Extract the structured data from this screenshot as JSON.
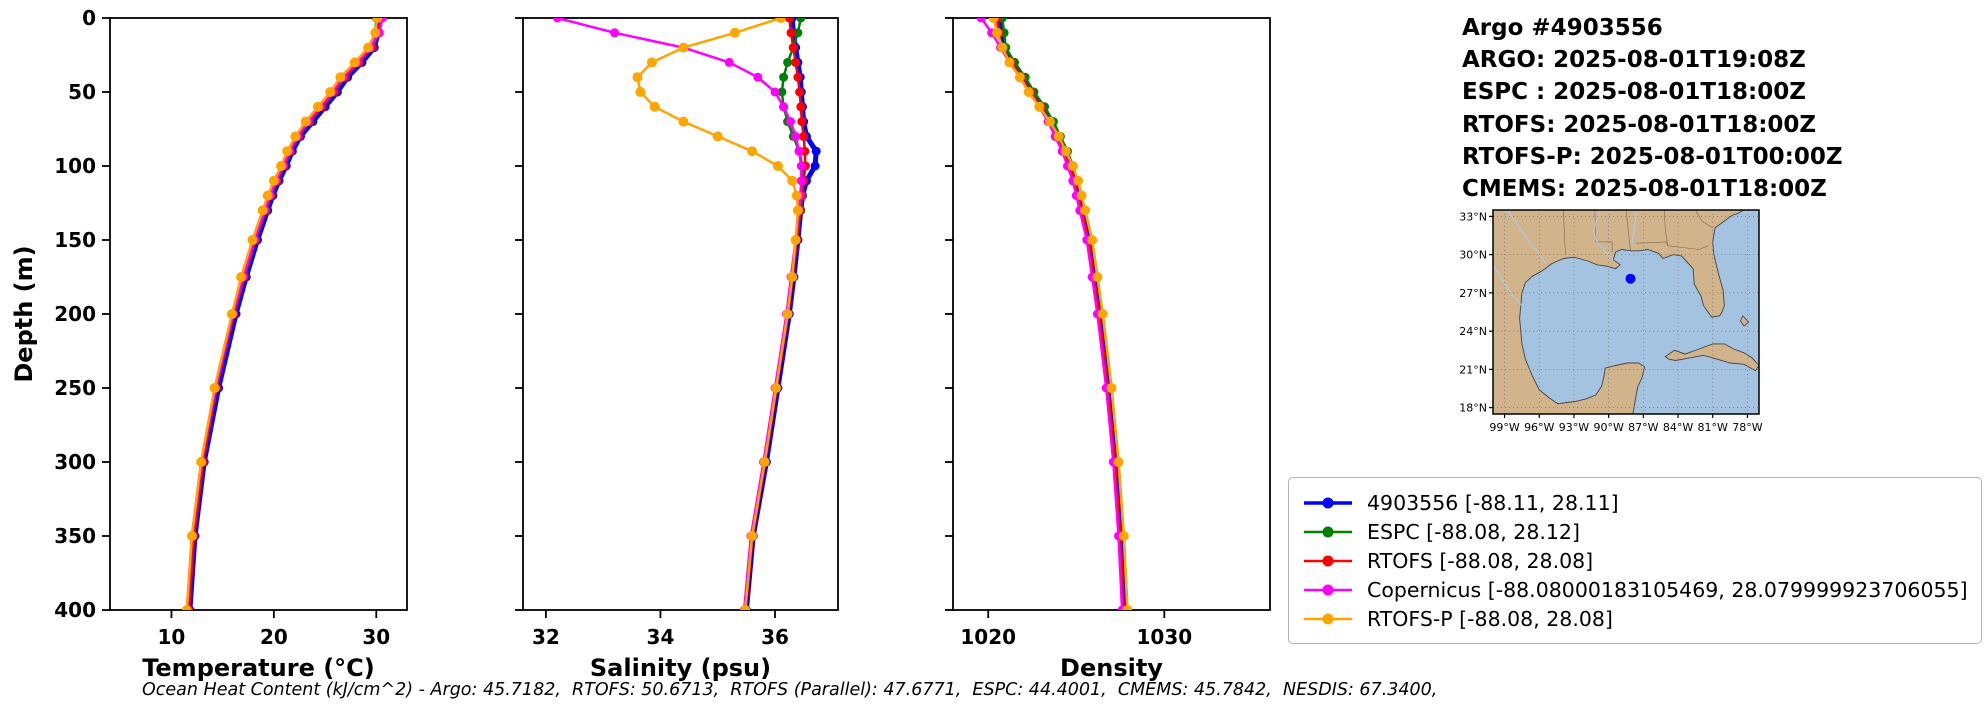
{
  "info_panel": {
    "title": "Argo #4903556",
    "lines": [
      "ARGO: 2025-08-01T19:08Z",
      "ESPC : 2025-08-01T18:00Z",
      "RTOFS: 2025-08-01T18:00Z",
      "RTOFS-P: 2025-08-01T00:00Z",
      "CMEMS: 2025-08-01T18:00Z"
    ]
  },
  "map": {
    "lat_ticks": [
      {
        "label": "33°N",
        "value": 33
      },
      {
        "label": "30°N",
        "value": 30
      },
      {
        "label": "27°N",
        "value": 27
      },
      {
        "label": "24°N",
        "value": 24
      },
      {
        "label": "21°N",
        "value": 21
      },
      {
        "label": "18°N",
        "value": 18
      }
    ],
    "lon_ticks": [
      {
        "label": "99°W",
        "value": -99
      },
      {
        "label": "96°W",
        "value": -96
      },
      {
        "label": "93°W",
        "value": -93
      },
      {
        "label": "90°W",
        "value": -90
      },
      {
        "label": "87°W",
        "value": -87
      },
      {
        "label": "84°W",
        "value": -84
      },
      {
        "label": "81°W",
        "value": -81
      },
      {
        "label": "78°W",
        "value": -78
      }
    ],
    "marker": {
      "lon": -88.11,
      "lat": 28.11,
      "color": "#0000ff"
    },
    "land_color": "#d2b48c",
    "water_color": "#a3c3e0"
  },
  "legend": {
    "items": [
      {
        "name": "4903556",
        "label": "4903556 [-88.11, 28.11]",
        "color": "#0000ff"
      },
      {
        "name": "ESPC",
        "label": "ESPC [-88.08, 28.12]",
        "color": "#008000"
      },
      {
        "name": "RTOFS",
        "label": "RTOFS [-88.08, 28.08]",
        "color": "#ff0000"
      },
      {
        "name": "Copernicus",
        "label": "Copernicus [-88.08000183105469, 28.079999923706055]",
        "color": "#ff00ff"
      },
      {
        "name": "RTOFS-P",
        "label": "RTOFS-P [-88.08, 28.08]",
        "color": "#ffa500"
      }
    ]
  },
  "footer": {
    "text": "Ocean Heat Content (kJ/cm^2) - Argo: 45.7182,  RTOFS: 50.6713,  RTOFS (Parallel): 47.6771,  ESPC: 44.4001,  CMEMS: 45.7842,  NESDIS: 67.3400,"
  },
  "chart_data": [
    {
      "type": "line",
      "title": "",
      "xlabel": "Temperature (°C)",
      "ylabel": "Depth (m)",
      "xlim": [
        4,
        33
      ],
      "ylim": [
        0,
        400
      ],
      "y_inverted": true,
      "grid": false,
      "xticks": [
        10,
        20,
        30
      ],
      "yticks": [
        0,
        50,
        100,
        150,
        200,
        250,
        300,
        350,
        400
      ],
      "depths": [
        0,
        10,
        20,
        30,
        40,
        50,
        60,
        70,
        80,
        90,
        100,
        110,
        120,
        130,
        150,
        175,
        200,
        250,
        300,
        350,
        400
      ],
      "series": [
        {
          "name": "4903556",
          "color": "#0000ff",
          "lw": 5,
          "ms": 4.5,
          "values": [
            30.3,
            30.2,
            29.8,
            28.6,
            27.2,
            26.2,
            25.0,
            23.8,
            22.6,
            21.8,
            21.2,
            20.5,
            19.9,
            19.4,
            18.4,
            17.3,
            16.3,
            14.6,
            13.2,
            12.3,
            11.8
          ]
        },
        {
          "name": "ESPC",
          "color": "#008000",
          "lw": 2.5,
          "ms": 4.5,
          "values": [
            30.0,
            29.9,
            29.3,
            28.0,
            26.6,
            25.6,
            24.4,
            23.2,
            22.2,
            21.4,
            20.8,
            20.1,
            19.5,
            19.0,
            18.0,
            16.9,
            16.0,
            14.3,
            13.0,
            12.1,
            11.6
          ]
        },
        {
          "name": "RTOFS",
          "color": "#ff0000",
          "lw": 2.5,
          "ms": 4.5,
          "values": [
            30.4,
            30.2,
            29.6,
            28.3,
            26.9,
            25.9,
            24.7,
            23.5,
            22.4,
            21.6,
            21.0,
            20.3,
            19.7,
            19.2,
            18.2,
            17.1,
            16.1,
            14.4,
            13.1,
            12.2,
            11.7
          ]
        },
        {
          "name": "Copernicus",
          "color": "#ff00ff",
          "lw": 2.5,
          "ms": 4.5,
          "values": [
            30.6,
            30.3,
            29.4,
            28.1,
            26.7,
            25.7,
            24.5,
            23.3,
            22.3,
            21.5,
            20.9,
            20.2,
            19.6,
            19.1,
            18.1,
            17.0,
            16.0,
            14.3,
            12.9,
            12.0,
            11.5
          ]
        },
        {
          "name": "RTOFS-P",
          "color": "#ffa500",
          "lw": 2.5,
          "ms": 5,
          "values": [
            30.1,
            29.9,
            29.2,
            27.9,
            26.5,
            25.5,
            24.3,
            23.1,
            22.1,
            21.3,
            20.7,
            20.0,
            19.4,
            18.9,
            17.9,
            16.8,
            15.9,
            14.2,
            12.9,
            12.0,
            11.5
          ]
        }
      ]
    },
    {
      "type": "line",
      "title": "",
      "xlabel": "Salinity (psu)",
      "ylabel": "Depth (m)",
      "xlim": [
        31.6,
        37.1
      ],
      "ylim": [
        0,
        400
      ],
      "y_inverted": true,
      "grid": false,
      "xticks": [
        32,
        34,
        36
      ],
      "yticks": [
        0,
        50,
        100,
        150,
        200,
        250,
        300,
        350,
        400
      ],
      "depths": [
        0,
        10,
        20,
        30,
        40,
        50,
        60,
        70,
        80,
        90,
        100,
        110,
        120,
        130,
        150,
        175,
        200,
        250,
        300,
        350,
        400
      ],
      "series": [
        {
          "name": "4903556",
          "color": "#0000ff",
          "lw": 5,
          "ms": 4.5,
          "values": [
            36.3,
            36.32,
            36.36,
            36.4,
            36.44,
            36.46,
            36.48,
            36.5,
            36.55,
            36.72,
            36.7,
            36.55,
            36.48,
            36.45,
            36.4,
            36.33,
            36.25,
            36.05,
            35.85,
            35.62,
            35.5
          ]
        },
        {
          "name": "ESPC",
          "color": "#008000",
          "lw": 2.5,
          "ms": 4.5,
          "values": [
            36.45,
            36.4,
            36.32,
            36.22,
            36.15,
            36.12,
            36.15,
            36.22,
            36.32,
            36.42,
            36.48,
            36.5,
            36.48,
            36.45,
            36.38,
            36.3,
            36.22,
            36.02,
            35.82,
            35.6,
            35.48
          ]
        },
        {
          "name": "RTOFS",
          "color": "#ff0000",
          "lw": 2.5,
          "ms": 4.5,
          "values": [
            36.25,
            36.28,
            36.32,
            36.36,
            36.4,
            36.43,
            36.45,
            36.47,
            36.5,
            36.52,
            36.53,
            36.5,
            36.47,
            36.44,
            36.38,
            36.31,
            36.23,
            36.03,
            35.83,
            35.61,
            35.49
          ]
        },
        {
          "name": "Copernicus",
          "color": "#ff00ff",
          "lw": 2.5,
          "ms": 4.5,
          "values": [
            32.2,
            33.2,
            34.4,
            35.2,
            35.7,
            36.0,
            36.15,
            36.27,
            36.36,
            36.42,
            36.46,
            36.46,
            36.44,
            36.42,
            36.36,
            36.28,
            36.2,
            36.0,
            35.8,
            35.58,
            35.46
          ]
        },
        {
          "name": "RTOFS-P",
          "color": "#ffa500",
          "lw": 2.5,
          "ms": 5,
          "values": [
            36.1,
            35.3,
            34.4,
            33.85,
            33.6,
            33.65,
            33.9,
            34.4,
            35.0,
            35.6,
            36.05,
            36.3,
            36.38,
            36.4,
            36.36,
            36.3,
            36.22,
            36.02,
            35.82,
            35.6,
            35.48
          ]
        }
      ]
    },
    {
      "type": "line",
      "title": "",
      "xlabel": "Density",
      "ylabel": "Depth (m)",
      "xlim": [
        1018,
        1036
      ],
      "ylim": [
        0,
        400
      ],
      "y_inverted": true,
      "grid": false,
      "xticks": [
        1020,
        1030
      ],
      "yticks": [
        0,
        50,
        100,
        150,
        200,
        250,
        300,
        350,
        400
      ],
      "depths": [
        0,
        10,
        20,
        30,
        40,
        50,
        60,
        70,
        80,
        90,
        100,
        110,
        120,
        130,
        150,
        175,
        200,
        250,
        300,
        350,
        400
      ],
      "series": [
        {
          "name": "4903556",
          "color": "#0000ff",
          "lw": 5,
          "ms": 4.5,
          "values": [
            1020.6,
            1020.7,
            1020.9,
            1021.4,
            1022.0,
            1022.5,
            1023.1,
            1023.6,
            1024.0,
            1024.4,
            1024.7,
            1025.0,
            1025.2,
            1025.4,
            1025.8,
            1026.1,
            1026.4,
            1026.9,
            1027.3,
            1027.6,
            1027.8
          ]
        },
        {
          "name": "ESPC",
          "color": "#008000",
          "lw": 2.5,
          "ms": 4.5,
          "values": [
            1020.8,
            1020.9,
            1021.0,
            1021.5,
            1022.1,
            1022.6,
            1023.2,
            1023.7,
            1024.1,
            1024.5,
            1024.8,
            1025.1,
            1025.3,
            1025.5,
            1025.9,
            1026.2,
            1026.5,
            1027.0,
            1027.4,
            1027.7,
            1027.9
          ]
        },
        {
          "name": "RTOFS",
          "color": "#ff0000",
          "lw": 2.5,
          "ms": 4.5,
          "values": [
            1020.5,
            1020.6,
            1020.8,
            1021.3,
            1021.9,
            1022.4,
            1023.0,
            1023.5,
            1023.9,
            1024.3,
            1024.6,
            1024.9,
            1025.1,
            1025.3,
            1025.7,
            1026.0,
            1026.3,
            1026.8,
            1027.2,
            1027.5,
            1027.7
          ]
        },
        {
          "name": "Copernicus",
          "color": "#ff00ff",
          "lw": 2.5,
          "ms": 4.5,
          "values": [
            1019.6,
            1020.2,
            1020.7,
            1021.2,
            1021.8,
            1022.3,
            1022.9,
            1023.4,
            1023.8,
            1024.2,
            1024.5,
            1024.8,
            1025.0,
            1025.2,
            1025.6,
            1025.9,
            1026.2,
            1026.7,
            1027.1,
            1027.4,
            1027.6
          ]
        },
        {
          "name": "RTOFS-P",
          "color": "#ffa500",
          "lw": 2.5,
          "ms": 5,
          "values": [
            1020.3,
            1020.5,
            1020.8,
            1021.2,
            1021.8,
            1022.3,
            1022.9,
            1023.5,
            1024.0,
            1024.4,
            1024.8,
            1025.1,
            1025.3,
            1025.5,
            1025.9,
            1026.2,
            1026.5,
            1027.0,
            1027.4,
            1027.7,
            1027.9
          ]
        }
      ]
    }
  ]
}
